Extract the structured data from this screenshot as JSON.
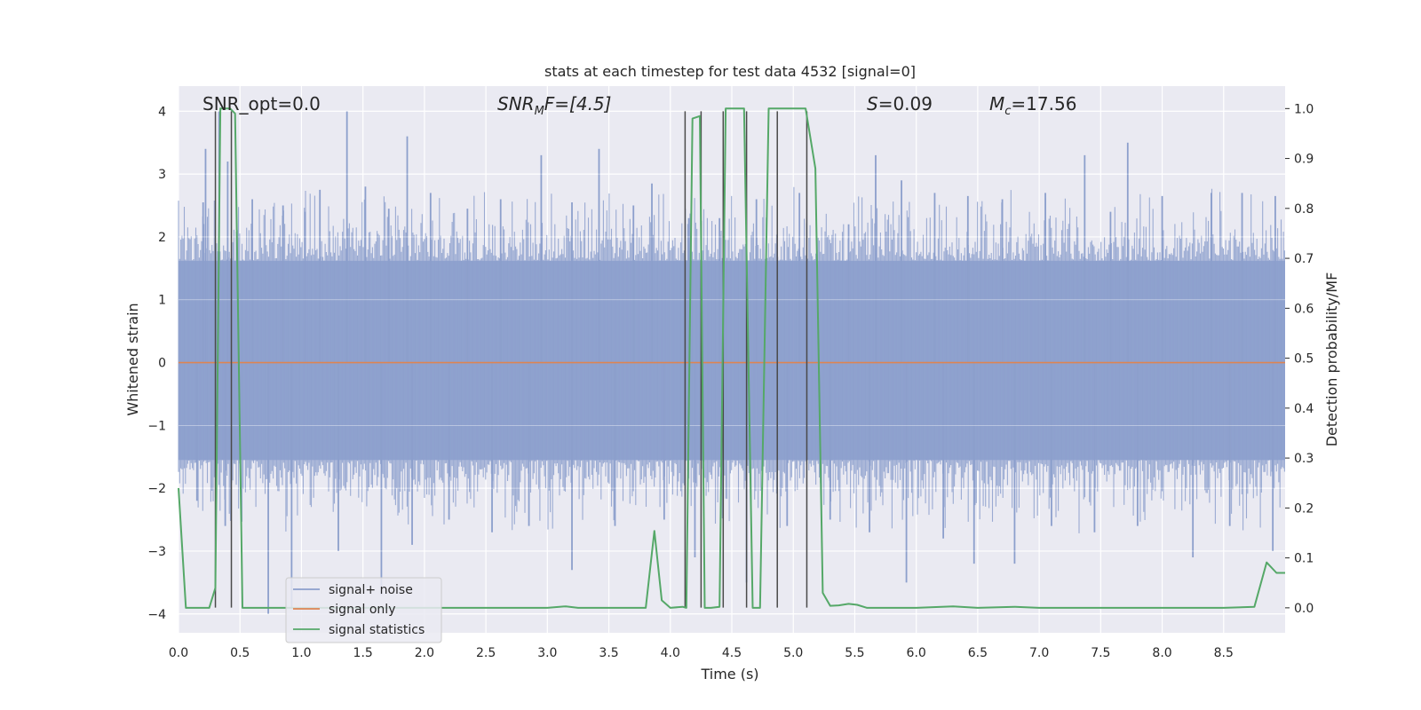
{
  "chart_data": {
    "type": "line",
    "title": "stats at each timestep for test data 4532 [signal=0]",
    "xlabel": "Time (s)",
    "ylabel": "Whitened strain",
    "ylabel_right": "Detection probability/MF",
    "xlim": [
      0.0,
      9.0
    ],
    "ylim": [
      -4.3,
      4.4
    ],
    "ylim_right": [
      -0.05,
      1.045
    ],
    "xticks": [
      "0.0",
      "0.5",
      "1.0",
      "1.5",
      "2.0",
      "2.5",
      "3.0",
      "3.5",
      "4.0",
      "4.5",
      "5.0",
      "5.5",
      "6.0",
      "6.5",
      "7.0",
      "7.5",
      "8.0",
      "8.5"
    ],
    "yticks": [
      "4",
      "3",
      "2",
      "1",
      "0",
      "−1",
      "−2",
      "−3",
      "−4"
    ],
    "yticks_right": [
      "1.0",
      "0.9",
      "0.8",
      "0.7",
      "0.6",
      "0.5",
      "0.4",
      "0.3",
      "0.2",
      "0.1",
      "0.0"
    ],
    "annotations": {
      "snr_opt": "SNR_opt=0.0",
      "snr_mf_base": "SNR",
      "snr_mf_sub": "M",
      "snr_mf_rest": "F=[4.5]",
      "s_base": "S",
      "s_rest": "=0.09",
      "mc_base": "M",
      "mc_sub": "c",
      "mc_rest": "=17.56"
    },
    "legend": {
      "location": "lower-left",
      "entries": [
        "signal+ noise",
        "signal only",
        "signal statistics"
      ]
    },
    "colors": {
      "noise": "#8c9fcc",
      "signal": "#dd8452",
      "stats": "#55a868",
      "vlines": "#4a4a4a",
      "background": "#eaeaf2",
      "grid": "#ffffff"
    },
    "series": [
      {
        "name": "signal statistics",
        "axis": "right",
        "x": [
          0.0,
          0.06,
          0.12,
          0.18,
          0.25,
          0.3,
          0.34,
          0.38,
          0.42,
          0.46,
          0.52,
          0.6,
          0.8,
          1.0,
          1.5,
          2.0,
          2.5,
          3.0,
          3.15,
          3.25,
          3.5,
          3.8,
          3.87,
          3.93,
          4.0,
          4.1,
          4.13,
          4.18,
          4.24,
          4.28,
          4.33,
          4.4,
          4.45,
          4.5,
          4.6,
          4.67,
          4.73,
          4.8,
          4.85,
          4.91,
          5.0,
          5.1,
          5.18,
          5.24,
          5.3,
          5.37,
          5.45,
          5.52,
          5.6,
          6.0,
          6.3,
          6.5,
          6.8,
          7.0,
          7.5,
          8.0,
          8.5,
          8.75,
          8.85,
          8.93,
          9.0
        ],
        "y": [
          0.24,
          0.0,
          0.0,
          0.0,
          0.0,
          0.04,
          1.0,
          1.0,
          1.0,
          0.99,
          0.0,
          0.0,
          0.0,
          0.0,
          0.0,
          0.0,
          0.0,
          0.0,
          0.003,
          0.0,
          0.0,
          0.0,
          0.154,
          0.015,
          0.0,
          0.002,
          0.0,
          0.98,
          0.985,
          0.0,
          0.0,
          0.002,
          1.0,
          1.0,
          1.0,
          0.0,
          0.0,
          1.0,
          1.0,
          1.0,
          1.0,
          1.0,
          0.88,
          0.03,
          0.004,
          0.005,
          0.008,
          0.006,
          0.0,
          0.0,
          0.003,
          0.0,
          0.002,
          0.0,
          0.0,
          0.0,
          0.0,
          0.002,
          0.091,
          0.07,
          0.07
        ]
      },
      {
        "name": "signal only",
        "axis": "left",
        "x": [
          0.0,
          9.0
        ],
        "y": [
          0.0,
          0.0
        ]
      }
    ],
    "vertical_lines": [
      {
        "x": 0.3,
        "y0": -3.9,
        "y1": 4.0
      },
      {
        "x": 0.43,
        "y0": -3.9,
        "y1": 4.0
      },
      {
        "x": 4.12,
        "y0": -3.9,
        "y1": 4.0
      },
      {
        "x": 4.25,
        "y0": -3.9,
        "y1": 4.0
      },
      {
        "x": 4.43,
        "y0": -3.9,
        "y1": 4.0
      },
      {
        "x": 4.62,
        "y0": -3.9,
        "y1": 4.0
      },
      {
        "x": 4.87,
        "y0": -3.9,
        "y1": 4.0
      },
      {
        "x": 5.11,
        "y0": -3.9,
        "y1": 4.0
      }
    ],
    "noise_band": {
      "core": [
        -1.55,
        1.62
      ],
      "spike_positive": [
        {
          "x": 0.2,
          "y": 2.55
        },
        {
          "x": 0.22,
          "y": 3.4
        },
        {
          "x": 0.33,
          "y": 4.0
        },
        {
          "x": 0.4,
          "y": 3.2
        },
        {
          "x": 0.6,
          "y": 2.6
        },
        {
          "x": 0.85,
          "y": 2.5
        },
        {
          "x": 1.03,
          "y": 2.4
        },
        {
          "x": 1.15,
          "y": 2.75
        },
        {
          "x": 1.37,
          "y": 4.0
        },
        {
          "x": 1.52,
          "y": 2.8
        },
        {
          "x": 1.71,
          "y": 2.45
        },
        {
          "x": 1.86,
          "y": 3.6
        },
        {
          "x": 2.05,
          "y": 2.7
        },
        {
          "x": 2.35,
          "y": 2.45
        },
        {
          "x": 2.62,
          "y": 2.6
        },
        {
          "x": 2.95,
          "y": 3.3
        },
        {
          "x": 3.2,
          "y": 2.55
        },
        {
          "x": 3.42,
          "y": 3.4
        },
        {
          "x": 3.7,
          "y": 2.5
        },
        {
          "x": 3.85,
          "y": 2.85
        },
        {
          "x": 4.15,
          "y": 2.3
        },
        {
          "x": 4.4,
          "y": 2.3
        },
        {
          "x": 4.7,
          "y": 2.6
        },
        {
          "x": 5.05,
          "y": 2.7
        },
        {
          "x": 5.45,
          "y": 2.2
        },
        {
          "x": 5.67,
          "y": 3.3
        },
        {
          "x": 5.88,
          "y": 2.9
        },
        {
          "x": 6.15,
          "y": 2.7
        },
        {
          "x": 6.42,
          "y": 2.65
        },
        {
          "x": 6.7,
          "y": 2.6
        },
        {
          "x": 7.05,
          "y": 2.7
        },
        {
          "x": 7.37,
          "y": 3.3
        },
        {
          "x": 7.58,
          "y": 2.4
        },
        {
          "x": 7.72,
          "y": 3.5
        },
        {
          "x": 8.0,
          "y": 2.65
        },
        {
          "x": 8.4,
          "y": 2.7
        },
        {
          "x": 8.65,
          "y": 2.7
        },
        {
          "x": 8.92,
          "y": 2.65
        }
      ],
      "spike_negative": [
        {
          "x": 0.15,
          "y": -2.2
        },
        {
          "x": 0.38,
          "y": -2.6
        },
        {
          "x": 0.73,
          "y": -4.0
        },
        {
          "x": 0.92,
          "y": -3.9
        },
        {
          "x": 1.3,
          "y": -3.0
        },
        {
          "x": 1.65,
          "y": -3.7
        },
        {
          "x": 1.9,
          "y": -2.9
        },
        {
          "x": 2.2,
          "y": -2.5
        },
        {
          "x": 2.55,
          "y": -2.7
        },
        {
          "x": 2.85,
          "y": -2.6
        },
        {
          "x": 3.2,
          "y": -3.3
        },
        {
          "x": 3.55,
          "y": -2.6
        },
        {
          "x": 3.95,
          "y": -2.5
        },
        {
          "x": 4.2,
          "y": -3.1
        },
        {
          "x": 4.62,
          "y": -3.5
        },
        {
          "x": 4.95,
          "y": -2.6
        },
        {
          "x": 5.3,
          "y": -2.5
        },
        {
          "x": 5.62,
          "y": -2.7
        },
        {
          "x": 5.92,
          "y": -3.5
        },
        {
          "x": 6.22,
          "y": -2.8
        },
        {
          "x": 6.47,
          "y": -3.2
        },
        {
          "x": 6.8,
          "y": -3.2
        },
        {
          "x": 7.1,
          "y": -2.6
        },
        {
          "x": 7.45,
          "y": -2.7
        },
        {
          "x": 7.8,
          "y": -2.6
        },
        {
          "x": 8.25,
          "y": -3.1
        },
        {
          "x": 8.55,
          "y": -2.6
        },
        {
          "x": 8.9,
          "y": -3.0
        }
      ]
    }
  }
}
